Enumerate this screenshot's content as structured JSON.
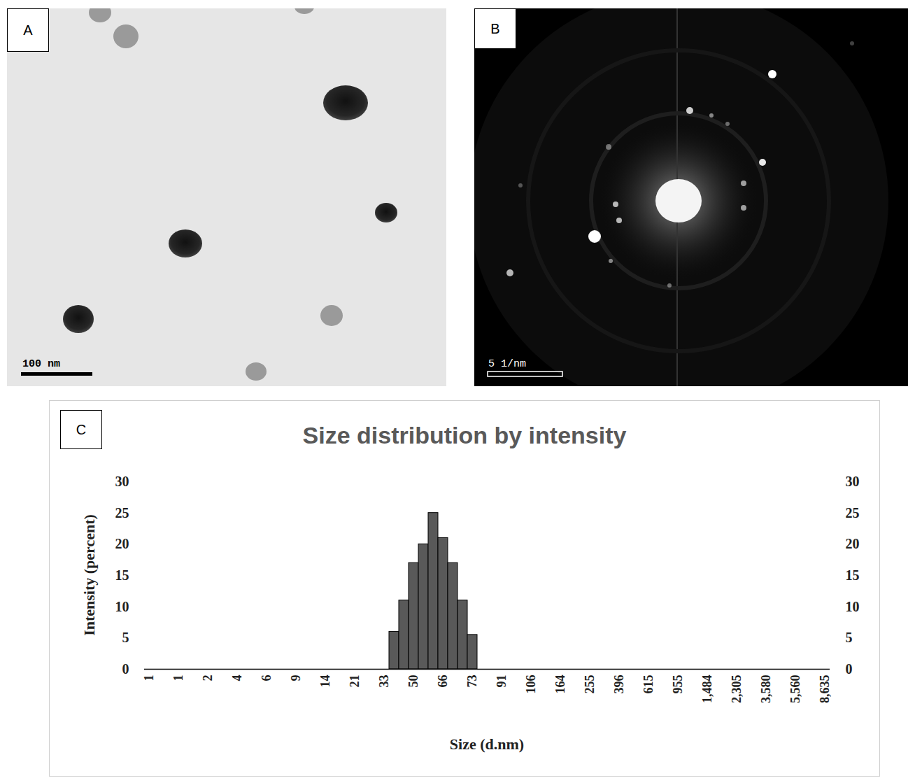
{
  "panels": [
    {
      "panel_label": "A",
      "scale_bar": "100 nm"
    },
    {
      "panel_label": "B",
      "scale_bar": "5 1/nm"
    }
  ],
  "chart_data": {
    "panel_label": "C",
    "type": "bar",
    "title": "Size distribution by intensity",
    "x_label": "Size (d.nm)",
    "y_label": "Intensity (percent)",
    "categories": [
      "1",
      null,
      null,
      "1",
      null,
      null,
      "2",
      null,
      null,
      "4",
      null,
      null,
      "6",
      null,
      null,
      "9",
      null,
      null,
      "14",
      null,
      null,
      "21",
      null,
      null,
      "33",
      null,
      null,
      "50",
      null,
      null,
      "66",
      null,
      null,
      "73",
      null,
      null,
      "91",
      null,
      null,
      "106",
      null,
      null,
      "164",
      null,
      null,
      "255",
      null,
      null,
      "396",
      null,
      null,
      "615",
      null,
      null,
      "955",
      null,
      null,
      "1,484",
      null,
      null,
      "2,305",
      null,
      null,
      "3,580",
      null,
      null,
      "5,560",
      null,
      null,
      "8,635"
    ],
    "values": [
      0,
      0,
      0,
      0,
      0,
      0,
      0,
      0,
      0,
      0,
      0,
      0,
      0,
      0,
      0,
      0,
      0,
      0,
      0,
      0,
      0,
      0,
      0,
      0,
      0,
      6,
      11,
      17,
      20,
      25,
      21,
      17,
      11,
      5.5,
      0,
      0,
      0,
      0,
      0,
      0,
      0,
      0,
      0,
      0,
      0,
      0,
      0,
      0,
      0,
      0,
      0,
      0,
      0,
      0,
      0,
      0,
      0,
      0,
      0,
      0,
      0,
      0,
      0,
      0,
      0,
      0,
      0,
      0,
      0,
      0
    ],
    "color": "#595959",
    "ylim": [
      0,
      30
    ],
    "yticks": [
      0,
      5,
      10,
      15,
      20,
      25,
      30
    ],
    "grid": false
  }
}
